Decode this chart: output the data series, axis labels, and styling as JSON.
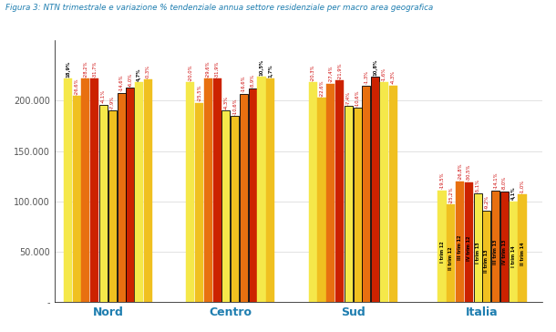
{
  "title": "Figura 3: NTN trimestrale e variazione % tendenziale annua settore residenziale per macro area geografica",
  "groups": [
    "Nord",
    "Centro",
    "Sud",
    "Italia"
  ],
  "series_labels": [
    "I trim 12",
    "II trim 12",
    "III trim 12",
    "IV trim 12",
    "I trim 13",
    "II trim 13",
    "III trim 13",
    "IV trim 13",
    "I trim 14",
    "II trim 14"
  ],
  "colors": [
    "#F5E84A",
    "#F0C020",
    "#E87010",
    "#CC2200",
    "#F5E84A",
    "#F0C020",
    "#E87010",
    "#CC2200",
    "#F5E84A",
    "#F0C020"
  ],
  "values": {
    "Nord": [
      222000,
      205000,
      222000,
      222000,
      196000,
      190000,
      208000,
      213000,
      218000,
      221000
    ],
    "Centro": [
      218000,
      198000,
      222000,
      222000,
      190000,
      185000,
      207000,
      212000,
      224000,
      222000
    ],
    "Sud": [
      218000,
      203000,
      217000,
      220000,
      195000,
      193000,
      215000,
      224000,
      218000,
      215000
    ],
    "Italia": [
      111000,
      97000,
      120000,
      119000,
      108000,
      91000,
      111000,
      110000,
      100000,
      107000
    ]
  },
  "pct_annotations": {
    "Nord": [
      "18,9%",
      "-26,6%",
      "-28,2%",
      "-31,7%",
      "-4,1%",
      "-7,9%",
      "-14,6%",
      "-6,0%",
      "4,7%",
      "-0,3%"
    ],
    "Centro": [
      "-20,0%",
      "-25,5%",
      "-29,6%",
      "-31,9%",
      "-4,3%",
      "-10,6%",
      "-16,6%",
      "-8,9%",
      "10,5%",
      "1,7%"
    ],
    "Sud": [
      "-20,3%",
      "-22,6%",
      "-27,4%",
      "-21,9%",
      "-7,4%",
      "-10,6%",
      "-1,3%",
      "10,8%",
      "-1,6%",
      "-4,3%"
    ],
    "Italia": [
      "-19,5%",
      "-25,2%",
      "-26,8%",
      "-30,5%",
      "-5,1%",
      "-9,2%",
      "-14,1%",
      "-8,0%",
      "4,1%",
      "-1,0%"
    ]
  },
  "pct_bold": {
    "Nord": [
      true,
      false,
      false,
      false,
      false,
      false,
      false,
      false,
      true,
      false
    ],
    "Centro": [
      false,
      false,
      false,
      false,
      false,
      false,
      false,
      false,
      true,
      true
    ],
    "Sud": [
      false,
      false,
      false,
      false,
      false,
      false,
      false,
      true,
      false,
      false
    ],
    "Italia": [
      false,
      false,
      false,
      false,
      false,
      false,
      false,
      false,
      true,
      false
    ]
  },
  "ylim": [
    0,
    260000
  ],
  "yticks": [
    0,
    50000,
    100000,
    150000,
    200000
  ],
  "ytick_labels": [
    "-",
    "50.000",
    "100.000",
    "150.000",
    "200.000"
  ],
  "bg_color": "#FFFFFF",
  "title_color": "#1F7EB0",
  "bar_width": 0.08,
  "group_centers": [
    0.52,
    1.62,
    2.72,
    3.88
  ]
}
